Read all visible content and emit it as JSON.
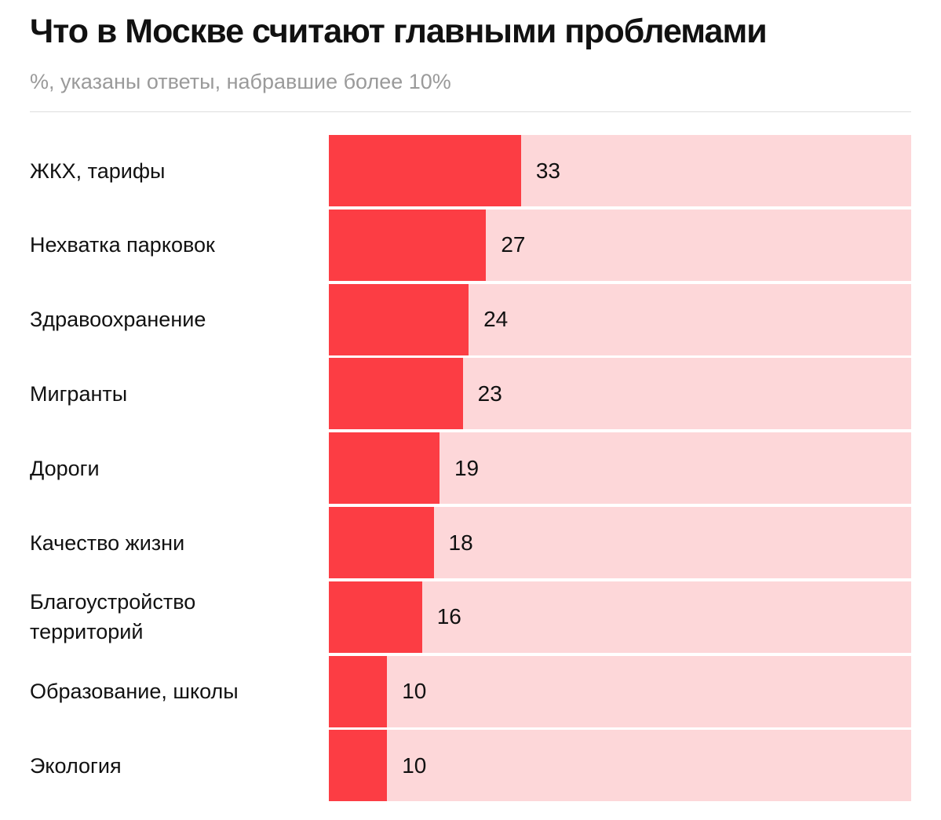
{
  "header": {
    "title": "Что в Москве считают главными проблемами",
    "subtitle": "%, указаны ответы, набравшие более 10%"
  },
  "colors": {
    "bar": "#fc3d44",
    "track": "#fdd7d9",
    "text": "#111111",
    "subtitle": "#9a9a9a"
  },
  "chart_data": {
    "type": "bar",
    "orientation": "horizontal",
    "title": "Что в Москве считают главными проблемами",
    "subtitle": "%, указаны ответы, набравшие более 10%",
    "xlim": [
      0,
      100
    ],
    "grid": false,
    "legend": "none",
    "categories": [
      "ЖКХ, тарифы",
      "Нехватка парковок",
      "Здравоохранение",
      "Мигранты",
      "Дороги",
      "Качество жизни",
      "Благоустройство территорий",
      "Образование, школы",
      "Экология"
    ],
    "values": [
      33,
      27,
      24,
      23,
      19,
      18,
      16,
      10,
      10
    ]
  }
}
